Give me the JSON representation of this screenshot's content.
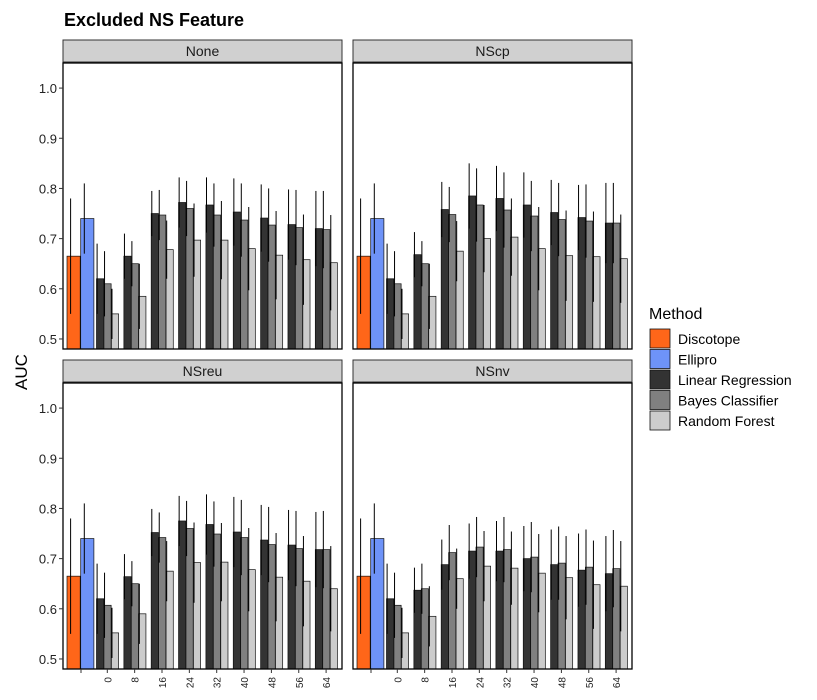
{
  "chart_data": {
    "type": "bar",
    "title": "Excluded NS Feature",
    "ylabel": "AUC",
    "xlabel": "",
    "ylim": [
      0.48,
      1.05
    ],
    "y_ticks": [
      "0.5",
      "0.6",
      "0.7",
      "0.8",
      "0.9",
      "1.0"
    ],
    "x_tick_labels": [
      "",
      "0",
      "8",
      "16",
      "24",
      "32",
      "40",
      "48",
      "56",
      "64"
    ],
    "legend": {
      "title": "Method",
      "position": "right",
      "entries": [
        {
          "name": "Discotope",
          "color": "#FF6619"
        },
        {
          "name": "Ellipro",
          "color": "#6E93F8"
        },
        {
          "name": "Linear Regression",
          "color": "#333333"
        },
        {
          "name": "Bayes Classifier",
          "color": "#808080"
        },
        {
          "name": "Random Forest",
          "color": "#CCCCCC"
        }
      ]
    },
    "panels": [
      {
        "label": "None",
        "baselines": {
          "Discotope": {
            "value": 0.665,
            "err": 0.115
          },
          "Ellipro": {
            "value": 0.74,
            "err": 0.07
          }
        },
        "groups": [
          {
            "x": "0",
            "lr": [
              0.62,
              0.07
            ],
            "bc": [
              0.61,
              0.065
            ],
            "rf": [
              0.55,
              0.05
            ]
          },
          {
            "x": "8",
            "lr": [
              0.665,
              0.045
            ],
            "bc": [
              0.65,
              0.045
            ],
            "rf": [
              0.585,
              0.065
            ]
          },
          {
            "x": "16",
            "lr": [
              0.75,
              0.045
            ],
            "bc": [
              0.747,
              0.05
            ],
            "rf": [
              0.678,
              0.058
            ]
          },
          {
            "x": "24",
            "lr": [
              0.772,
              0.05
            ],
            "bc": [
              0.76,
              0.055
            ],
            "rf": [
              0.697,
              0.073
            ]
          },
          {
            "x": "32",
            "lr": [
              0.767,
              0.055
            ],
            "bc": [
              0.747,
              0.063
            ],
            "rf": [
              0.697,
              0.078
            ]
          },
          {
            "x": "40",
            "lr": [
              0.753,
              0.067
            ],
            "bc": [
              0.737,
              0.073
            ],
            "rf": [
              0.68,
              0.083
            ]
          },
          {
            "x": "48",
            "lr": [
              0.741,
              0.067
            ],
            "bc": [
              0.727,
              0.073
            ],
            "rf": [
              0.667,
              0.088
            ]
          },
          {
            "x": "56",
            "lr": [
              0.728,
              0.07
            ],
            "bc": [
              0.722,
              0.075
            ],
            "rf": [
              0.658,
              0.09
            ]
          },
          {
            "x": "64",
            "lr": [
              0.72,
              0.075
            ],
            "bc": [
              0.718,
              0.077
            ],
            "rf": [
              0.652,
              0.095
            ]
          }
        ]
      },
      {
        "label": "NScp",
        "baselines": {
          "Discotope": {
            "value": 0.665,
            "err": 0.115
          },
          "Ellipro": {
            "value": 0.74,
            "err": 0.07
          }
        },
        "groups": [
          {
            "x": "0",
            "lr": [
              0.62,
              0.07
            ],
            "bc": [
              0.61,
              0.065
            ],
            "rf": [
              0.55,
              0.05
            ]
          },
          {
            "x": "8",
            "lr": [
              0.668,
              0.045
            ],
            "bc": [
              0.65,
              0.045
            ],
            "rf": [
              0.585,
              0.065
            ]
          },
          {
            "x": "16",
            "lr": [
              0.758,
              0.055
            ],
            "bc": [
              0.748,
              0.055
            ],
            "rf": [
              0.675,
              0.06
            ]
          },
          {
            "x": "24",
            "lr": [
              0.785,
              0.065
            ],
            "bc": [
              0.767,
              0.073
            ],
            "rf": [
              0.7,
              0.067
            ]
          },
          {
            "x": "32",
            "lr": [
              0.78,
              0.065
            ],
            "bc": [
              0.757,
              0.075
            ],
            "rf": [
              0.703,
              0.077
            ]
          },
          {
            "x": "40",
            "lr": [
              0.767,
              0.065
            ],
            "bc": [
              0.745,
              0.07
            ],
            "rf": [
              0.68,
              0.083
            ]
          },
          {
            "x": "48",
            "lr": [
              0.752,
              0.065
            ],
            "bc": [
              0.738,
              0.073
            ],
            "rf": [
              0.666,
              0.09
            ]
          },
          {
            "x": "56",
            "lr": [
              0.742,
              0.065
            ],
            "bc": [
              0.735,
              0.073
            ],
            "rf": [
              0.664,
              0.09
            ]
          },
          {
            "x": "64",
            "lr": [
              0.731,
              0.08
            ],
            "bc": [
              0.731,
              0.08
            ],
            "rf": [
              0.66,
              0.088
            ]
          }
        ]
      },
      {
        "label": "NSreu",
        "baselines": {
          "Discotope": {
            "value": 0.665,
            "err": 0.115
          },
          "Ellipro": {
            "value": 0.74,
            "err": 0.07
          }
        },
        "groups": [
          {
            "x": "0",
            "lr": [
              0.62,
              0.07
            ],
            "bc": [
              0.607,
              0.065
            ],
            "rf": [
              0.552,
              0.05
            ]
          },
          {
            "x": "8",
            "lr": [
              0.664,
              0.045
            ],
            "bc": [
              0.65,
              0.045
            ],
            "rf": [
              0.59,
              0.06
            ]
          },
          {
            "x": "16",
            "lr": [
              0.752,
              0.047
            ],
            "bc": [
              0.742,
              0.05
            ],
            "rf": [
              0.675,
              0.06
            ]
          },
          {
            "x": "24",
            "lr": [
              0.775,
              0.05
            ],
            "bc": [
              0.76,
              0.055
            ],
            "rf": [
              0.692,
              0.08
            ]
          },
          {
            "x": "32",
            "lr": [
              0.768,
              0.06
            ],
            "bc": [
              0.749,
              0.065
            ],
            "rf": [
              0.693,
              0.078
            ]
          },
          {
            "x": "40",
            "lr": [
              0.753,
              0.07
            ],
            "bc": [
              0.742,
              0.075
            ],
            "rf": [
              0.678,
              0.083
            ]
          },
          {
            "x": "48",
            "lr": [
              0.737,
              0.07
            ],
            "bc": [
              0.728,
              0.075
            ],
            "rf": [
              0.663,
              0.088
            ]
          },
          {
            "x": "56",
            "lr": [
              0.727,
              0.07
            ],
            "bc": [
              0.72,
              0.075
            ],
            "rf": [
              0.655,
              0.09
            ]
          },
          {
            "x": "64",
            "lr": [
              0.718,
              0.075
            ],
            "bc": [
              0.718,
              0.077
            ],
            "rf": [
              0.64,
              0.085
            ]
          }
        ]
      },
      {
        "label": "NSnv",
        "baselines": {
          "Discotope": {
            "value": 0.665,
            "err": 0.115
          },
          "Ellipro": {
            "value": 0.74,
            "err": 0.07
          }
        },
        "groups": [
          {
            "x": "0",
            "lr": [
              0.62,
              0.07
            ],
            "bc": [
              0.607,
              0.065
            ],
            "rf": [
              0.552,
              0.05
            ]
          },
          {
            "x": "8",
            "lr": [
              0.637,
              0.045
            ],
            "bc": [
              0.64,
              0.05
            ],
            "rf": [
              0.585,
              0.06
            ]
          },
          {
            "x": "16",
            "lr": [
              0.688,
              0.05
            ],
            "bc": [
              0.712,
              0.055
            ],
            "rf": [
              0.66,
              0.06
            ]
          },
          {
            "x": "24",
            "lr": [
              0.715,
              0.055
            ],
            "bc": [
              0.723,
              0.06
            ],
            "rf": [
              0.685,
              0.07
            ]
          },
          {
            "x": "32",
            "lr": [
              0.715,
              0.06
            ],
            "bc": [
              0.718,
              0.065
            ],
            "rf": [
              0.681,
              0.073
            ]
          },
          {
            "x": "40",
            "lr": [
              0.7,
              0.065
            ],
            "bc": [
              0.703,
              0.07
            ],
            "rf": [
              0.671,
              0.078
            ]
          },
          {
            "x": "48",
            "lr": [
              0.688,
              0.07
            ],
            "bc": [
              0.691,
              0.073
            ],
            "rf": [
              0.662,
              0.083
            ]
          },
          {
            "x": "56",
            "lr": [
              0.677,
              0.073
            ],
            "bc": [
              0.683,
              0.075
            ],
            "rf": [
              0.648,
              0.088
            ]
          },
          {
            "x": "64",
            "lr": [
              0.67,
              0.075
            ],
            "bc": [
              0.68,
              0.077
            ],
            "rf": [
              0.645,
              0.09
            ]
          }
        ]
      }
    ]
  }
}
